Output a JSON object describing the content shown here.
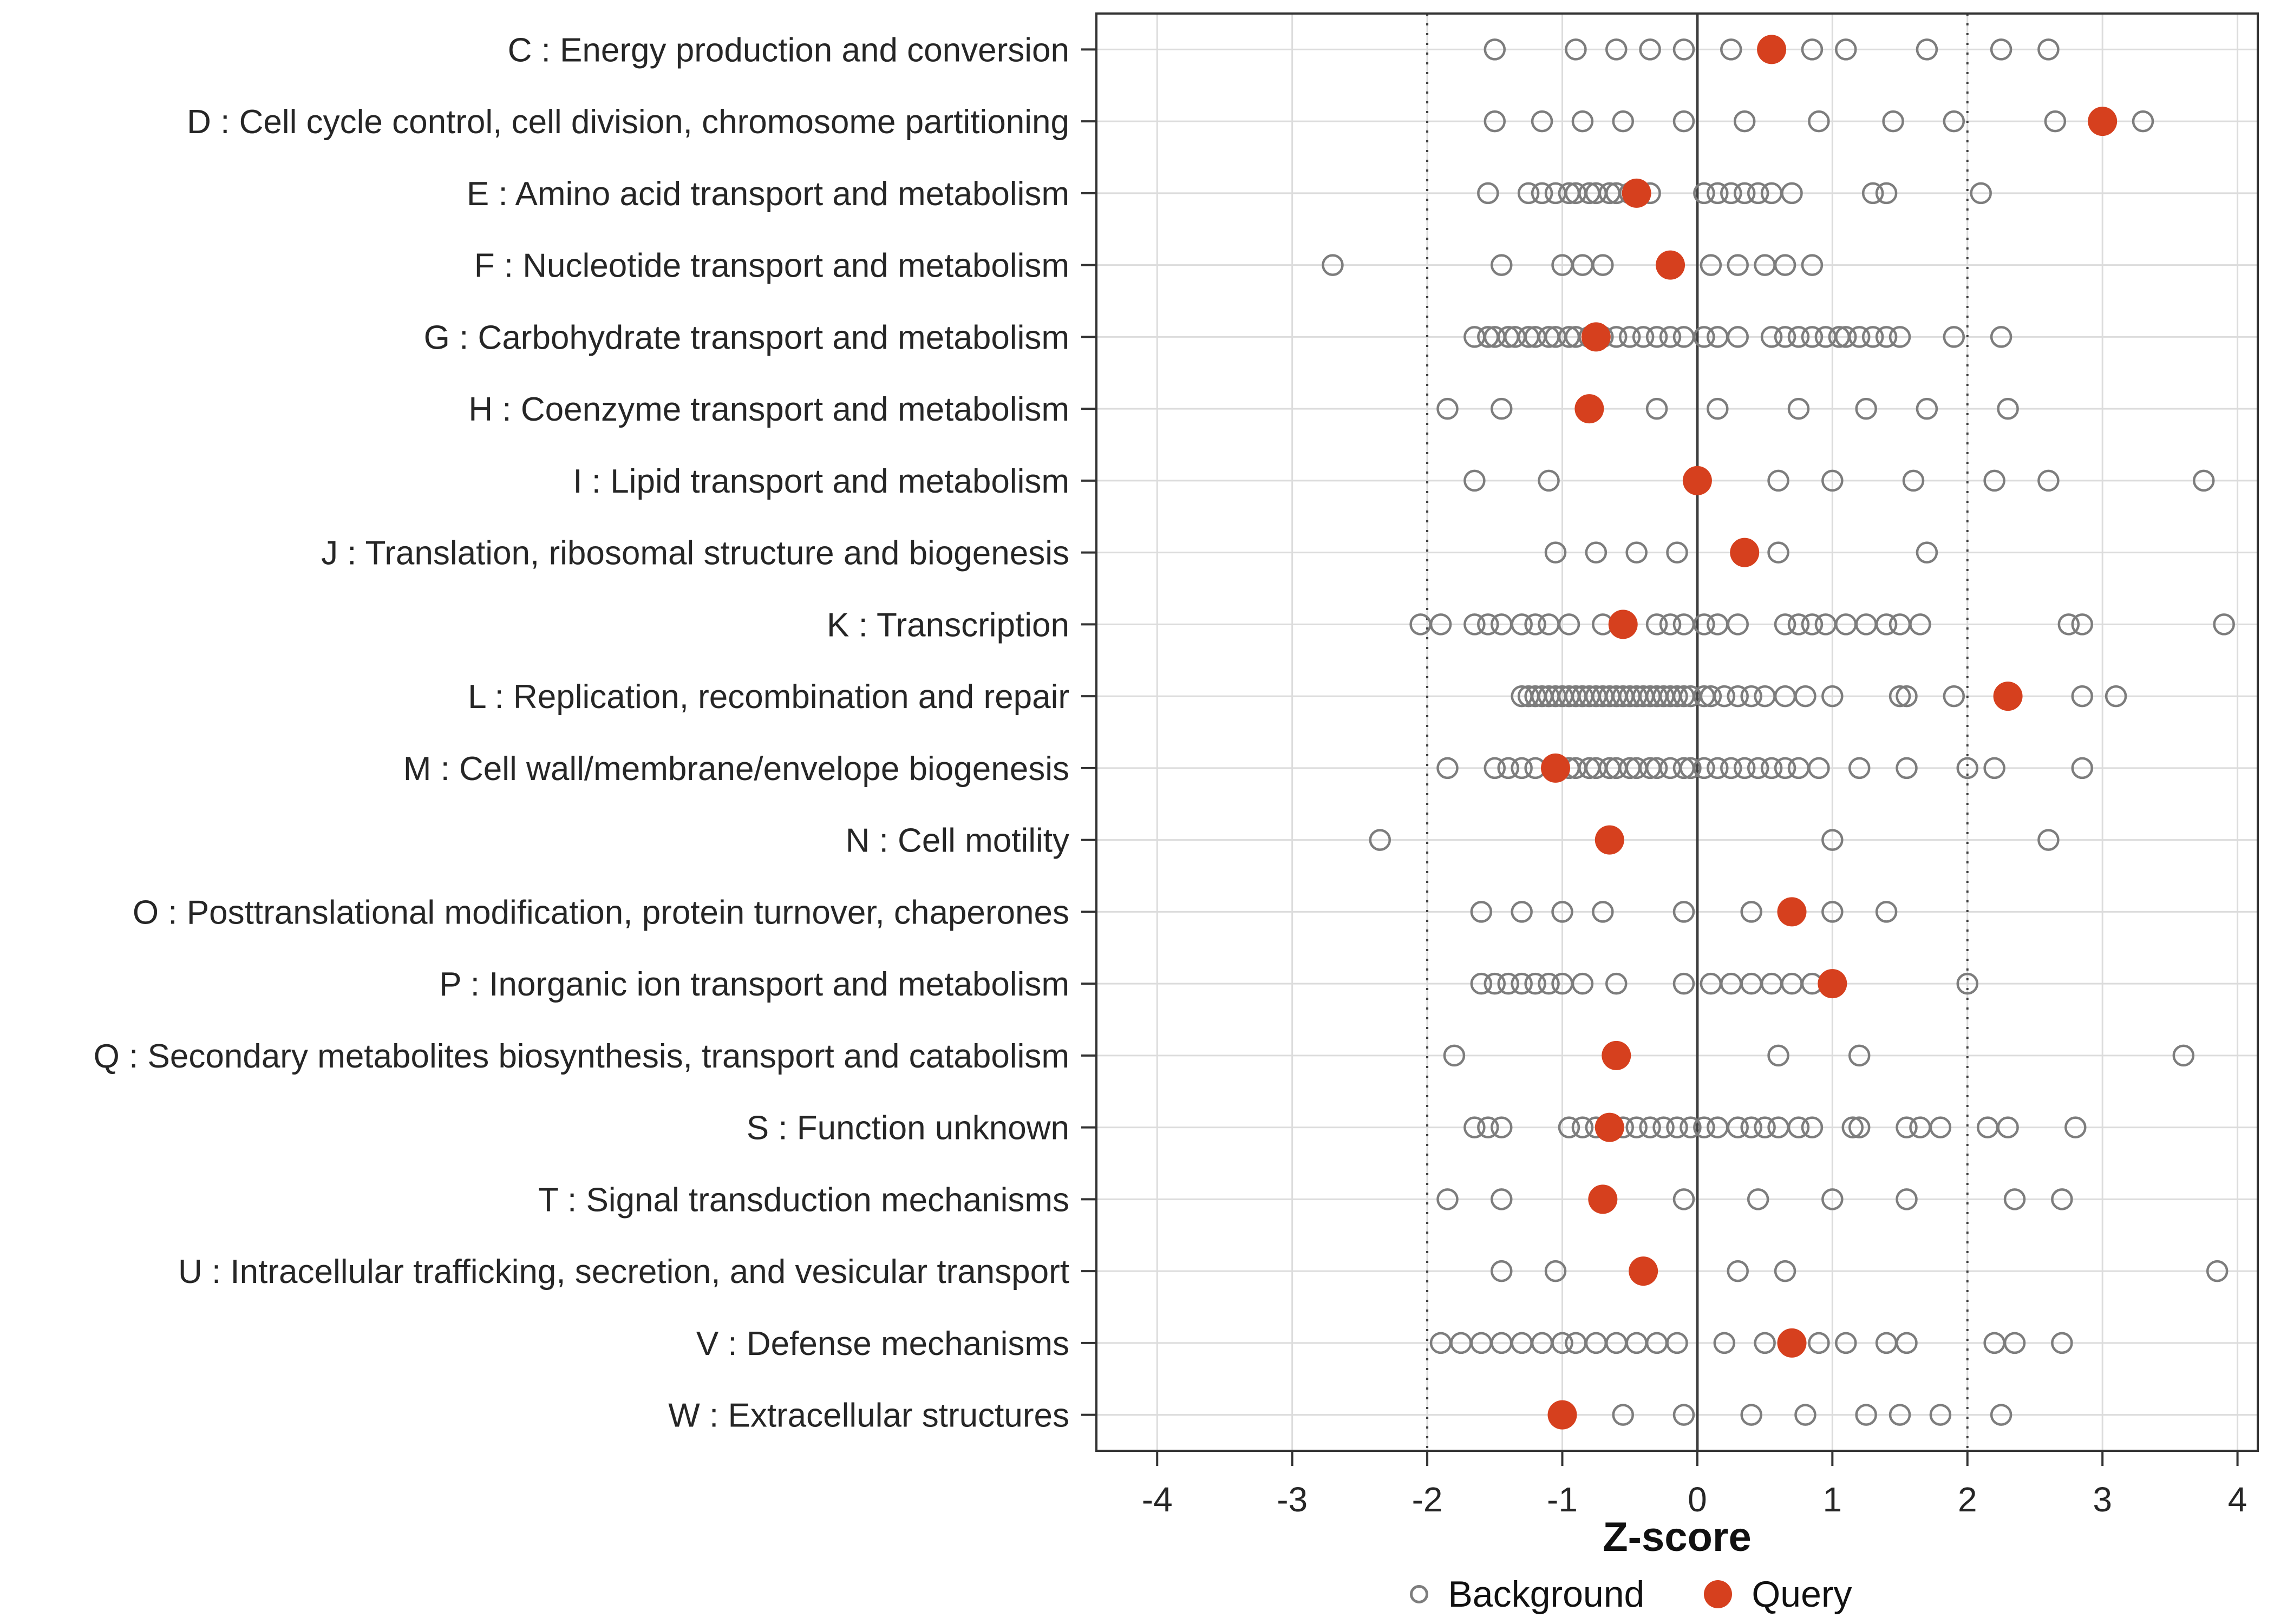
{
  "chart_data": {
    "type": "scatter",
    "title": "",
    "xlabel": "Z-score",
    "ylabel": "",
    "xlim": [
      -4.45,
      4.15
    ],
    "x_ticks": [
      -4,
      -3,
      -2,
      -1,
      0,
      1,
      2,
      3,
      4
    ],
    "grid": true,
    "legend_position": "bottom",
    "reference_lines": {
      "solid": [
        0
      ],
      "dotted": [
        -2,
        2
      ]
    },
    "legend": {
      "background_label": "Background",
      "query_label": "Query"
    },
    "colors": {
      "query": "#d6401e",
      "background_stroke": "#7d7d7d",
      "grid": "#dcdcdc",
      "refline": "#3f3f3f",
      "panel_border": "#333333",
      "axis_text": "#262626"
    },
    "categories": [
      {
        "label": "C : Energy production and conversion",
        "query": 0.55,
        "background": [
          -1.5,
          -0.9,
          -0.6,
          -0.35,
          -0.1,
          0.25,
          0.85,
          1.1,
          1.7,
          2.25,
          2.6
        ]
      },
      {
        "label": "D : Cell cycle control, cell division, chromosome partitioning",
        "query": 3.0,
        "background": [
          -1.5,
          -1.15,
          -0.85,
          -0.55,
          -0.1,
          0.35,
          0.9,
          1.45,
          1.9,
          2.65,
          3.3
        ]
      },
      {
        "label": "E : Amino acid transport and metabolism",
        "query": -0.45,
        "background": [
          -1.55,
          -1.25,
          -1.15,
          -1.05,
          -0.95,
          -0.9,
          -0.8,
          -0.75,
          -0.65,
          -0.6,
          -0.5,
          -0.35,
          0.05,
          0.15,
          0.25,
          0.35,
          0.45,
          0.55,
          0.7,
          1.3,
          1.4,
          2.1
        ]
      },
      {
        "label": "F : Nucleotide transport and metabolism",
        "query": -0.2,
        "background": [
          -2.7,
          -1.45,
          -1.0,
          -0.85,
          -0.7,
          0.1,
          0.3,
          0.5,
          0.65,
          0.85
        ]
      },
      {
        "label": "G : Carbohydrate transport and metabolism",
        "query": -0.75,
        "background": [
          -1.65,
          -1.55,
          -1.5,
          -1.4,
          -1.35,
          -1.25,
          -1.2,
          -1.1,
          -1.05,
          -0.95,
          -0.9,
          -0.8,
          -0.7,
          -0.6,
          -0.5,
          -0.4,
          -0.3,
          -0.2,
          -0.1,
          0.05,
          0.15,
          0.3,
          0.55,
          0.65,
          0.75,
          0.85,
          0.95,
          1.05,
          1.1,
          1.2,
          1.3,
          1.4,
          1.5,
          1.9,
          2.25
        ]
      },
      {
        "label": "H : Coenzyme transport and metabolism",
        "query": -0.8,
        "background": [
          -1.85,
          -1.45,
          -0.3,
          0.15,
          0.75,
          1.25,
          1.7,
          2.3
        ]
      },
      {
        "label": "I : Lipid transport and metabolism",
        "query": 0.0,
        "background": [
          -1.65,
          -1.1,
          0.6,
          1.0,
          1.6,
          2.2,
          2.6,
          3.75
        ]
      },
      {
        "label": "J : Translation, ribosomal structure and biogenesis",
        "query": 0.35,
        "background": [
          -1.05,
          -0.75,
          -0.45,
          -0.15,
          0.6,
          1.7
        ]
      },
      {
        "label": "K : Transcription",
        "query": -0.55,
        "background": [
          -2.05,
          -1.9,
          -1.65,
          -1.55,
          -1.45,
          -1.3,
          -1.2,
          -1.1,
          -0.95,
          -0.7,
          -0.3,
          -0.2,
          -0.1,
          0.05,
          0.15,
          0.3,
          0.65,
          0.75,
          0.85,
          0.95,
          1.1,
          1.25,
          1.4,
          1.5,
          1.65,
          2.75,
          2.85,
          3.9
        ]
      },
      {
        "label": "L : Replication, recombination and repair",
        "query": 2.3,
        "background": [
          -1.3,
          -1.25,
          -1.2,
          -1.15,
          -1.1,
          -1.05,
          -1.0,
          -0.95,
          -0.9,
          -0.85,
          -0.8,
          -0.75,
          -0.7,
          -0.65,
          -0.6,
          -0.55,
          -0.5,
          -0.45,
          -0.4,
          -0.35,
          -0.3,
          -0.25,
          -0.2,
          -0.15,
          -0.1,
          -0.05,
          0.05,
          0.1,
          0.2,
          0.3,
          0.4,
          0.5,
          0.65,
          0.8,
          1.0,
          1.5,
          1.55,
          1.9,
          2.85,
          3.1
        ]
      },
      {
        "label": "M : Cell wall/membrane/envelope biogenesis",
        "query": -1.05,
        "background": [
          -1.85,
          -1.5,
          -1.4,
          -1.3,
          -1.2,
          -0.95,
          -0.9,
          -0.8,
          -0.75,
          -0.65,
          -0.6,
          -0.5,
          -0.45,
          -0.35,
          -0.3,
          -0.2,
          -0.1,
          -0.05,
          0.05,
          0.15,
          0.25,
          0.35,
          0.45,
          0.55,
          0.65,
          0.75,
          0.9,
          1.2,
          1.55,
          2.0,
          2.2,
          2.85
        ]
      },
      {
        "label": "N : Cell motility",
        "query": -0.65,
        "background": [
          -2.35,
          1.0,
          2.6
        ]
      },
      {
        "label": "O : Posttranslational modification, protein turnover, chaperones",
        "query": 0.7,
        "background": [
          -1.6,
          -1.3,
          -1.0,
          -0.7,
          -0.1,
          0.4,
          1.0,
          1.4
        ]
      },
      {
        "label": "P : Inorganic ion transport and metabolism",
        "query": 1.0,
        "background": [
          -1.6,
          -1.5,
          -1.4,
          -1.3,
          -1.2,
          -1.1,
          -1.0,
          -0.85,
          -0.6,
          -0.1,
          0.1,
          0.25,
          0.4,
          0.55,
          0.7,
          0.85,
          2.0
        ]
      },
      {
        "label": "Q : Secondary metabolites biosynthesis, transport and catabolism",
        "query": -0.6,
        "background": [
          -1.8,
          0.6,
          1.2,
          3.6
        ]
      },
      {
        "label": "S : Function unknown",
        "query": -0.65,
        "background": [
          -1.65,
          -1.55,
          -1.45,
          -0.95,
          -0.85,
          -0.75,
          -0.55,
          -0.45,
          -0.35,
          -0.25,
          -0.15,
          -0.05,
          0.05,
          0.15,
          0.3,
          0.4,
          0.5,
          0.6,
          0.75,
          0.85,
          1.15,
          1.2,
          1.55,
          1.65,
          1.8,
          2.15,
          2.3,
          2.8
        ]
      },
      {
        "label": "T : Signal transduction mechanisms",
        "query": -0.7,
        "background": [
          -1.85,
          -1.45,
          -0.1,
          0.45,
          1.0,
          1.55,
          2.35,
          2.7
        ]
      },
      {
        "label": "U : Intracellular trafficking, secretion, and vesicular transport",
        "query": -0.4,
        "background": [
          -1.45,
          -1.05,
          0.3,
          0.65,
          3.85
        ]
      },
      {
        "label": "V : Defense mechanisms",
        "query": 0.7,
        "background": [
          -1.9,
          -1.75,
          -1.6,
          -1.45,
          -1.3,
          -1.15,
          -1.0,
          -0.9,
          -0.75,
          -0.6,
          -0.45,
          -0.3,
          -0.15,
          0.2,
          0.5,
          0.9,
          1.1,
          1.4,
          1.55,
          2.2,
          2.35,
          2.7
        ]
      },
      {
        "label": "W : Extracellular structures",
        "query": -1.0,
        "background": [
          -0.55,
          -0.1,
          0.4,
          0.8,
          1.25,
          1.5,
          1.8,
          2.25
        ]
      }
    ]
  }
}
